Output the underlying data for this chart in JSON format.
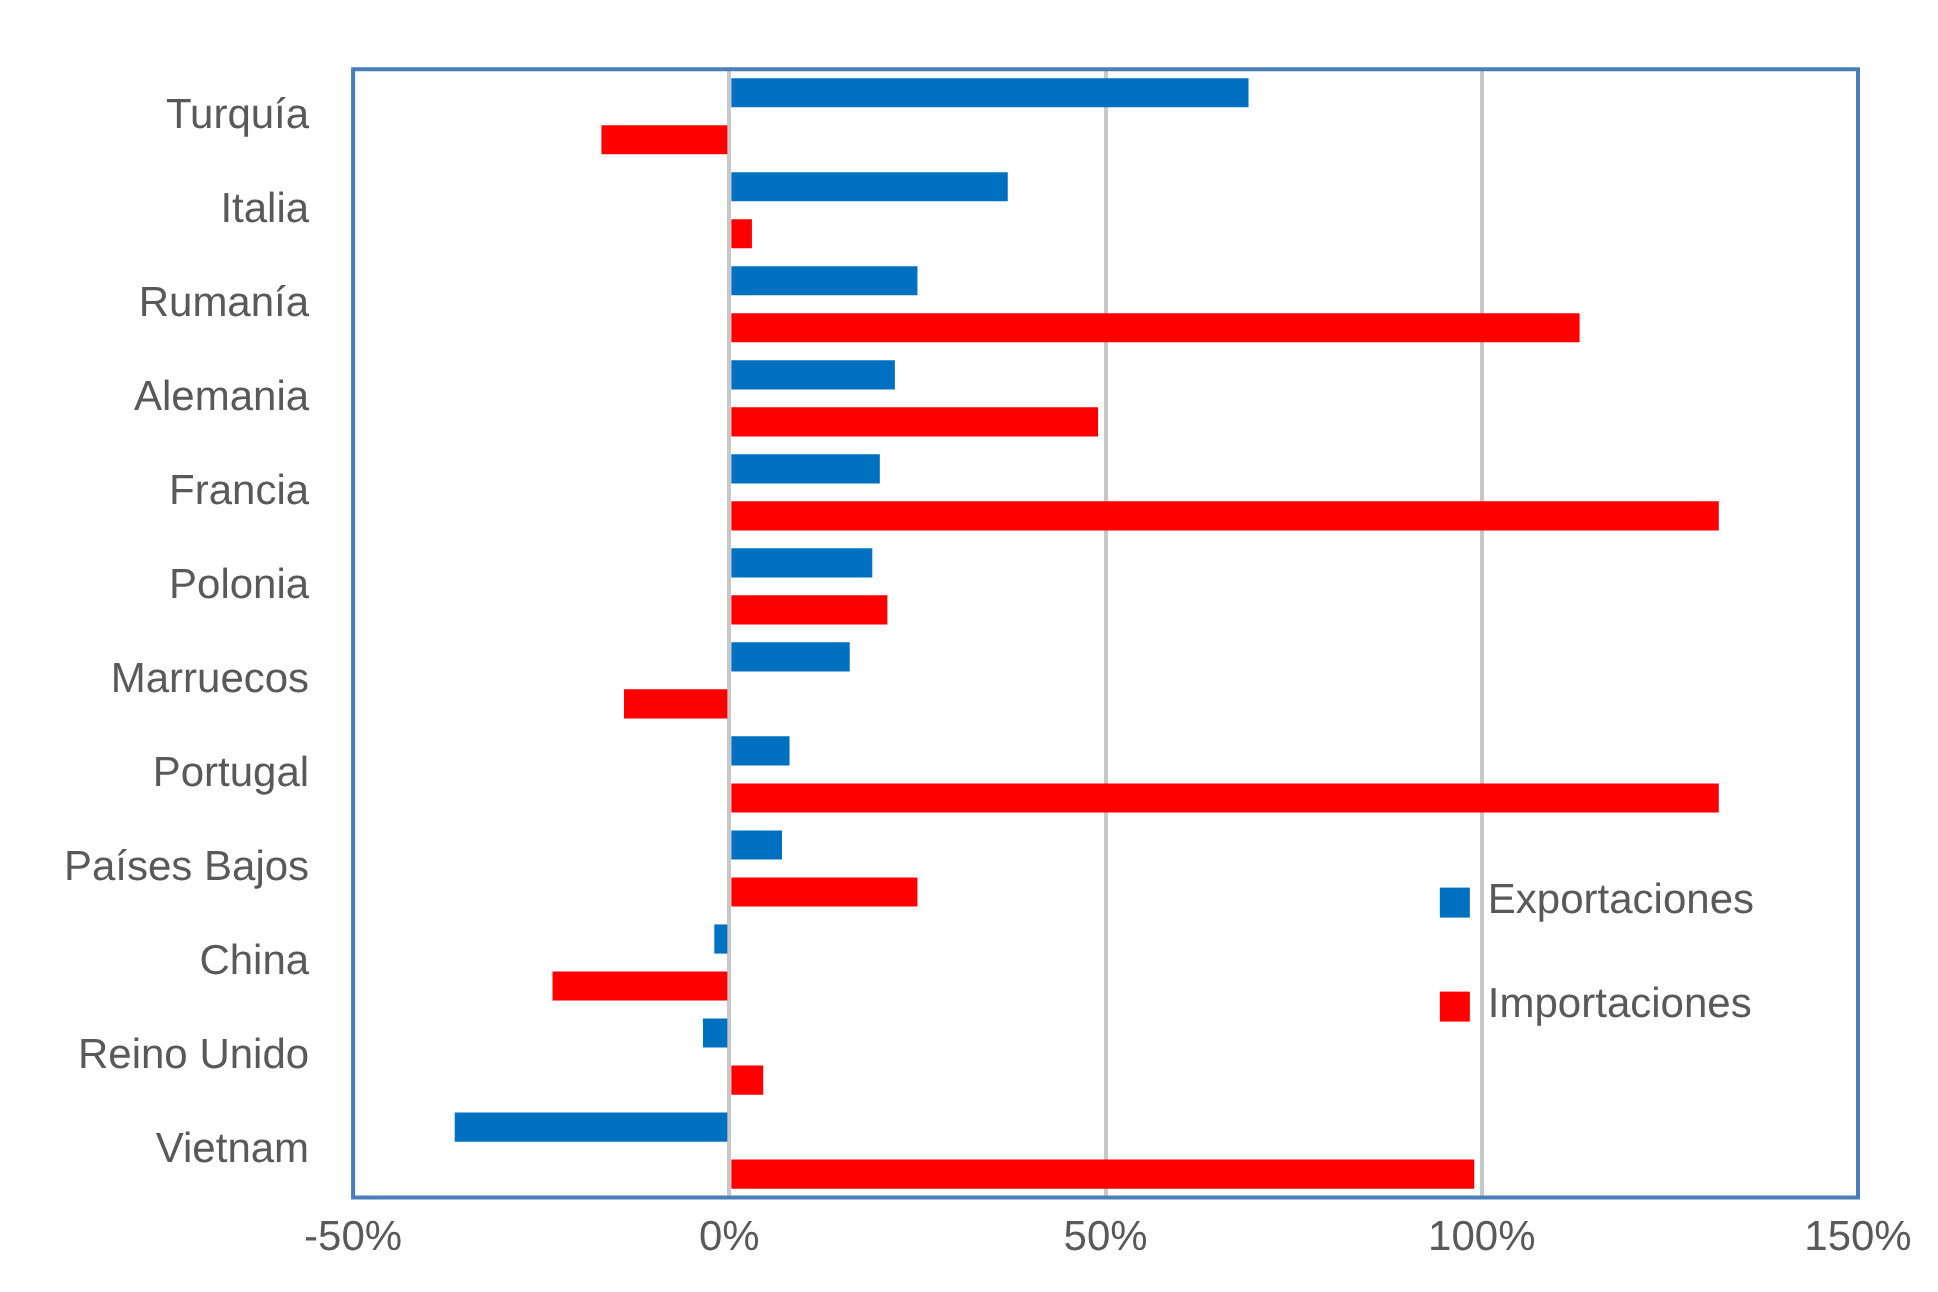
{
  "chart_data": {
    "type": "bar",
    "orientation": "horizontal",
    "categories": [
      "Turquía",
      "Italia",
      "Rumanía",
      "Alemania",
      "Francia",
      "Polonia",
      "Marruecos",
      "Portugal",
      "Países Bajos",
      "China",
      "Reino Unido",
      "Vietnam"
    ],
    "series": [
      {
        "name": "Exportaciones",
        "color": "#0070c0",
        "values": [
          69,
          37,
          25,
          22,
          20,
          19,
          16,
          8,
          7,
          -2,
          -3.5,
          -36.5
        ]
      },
      {
        "name": "Importaciones",
        "color": "#ff0000",
        "values": [
          -17,
          3,
          113,
          49,
          131.5,
          21,
          -14,
          131.5,
          25,
          -23.5,
          4.5,
          99
        ]
      }
    ],
    "xlim": [
      -50,
      150
    ],
    "xticks": [
      {
        "value": -50,
        "label": "-50%"
      },
      {
        "value": 0,
        "label": "0%"
      },
      {
        "value": 50,
        "label": "50%"
      },
      {
        "value": 100,
        "label": "100%"
      },
      {
        "value": 150,
        "label": "150%"
      }
    ],
    "grid": "x",
    "legend": "bottom right"
  }
}
